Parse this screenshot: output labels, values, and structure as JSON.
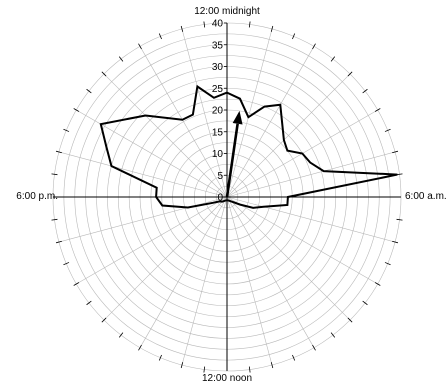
{
  "chart_data": {
    "type": "line",
    "subtype": "polar",
    "title": "",
    "direction_labels": {
      "top": "12:00 midnight",
      "right": "6:00 a.m.",
      "bottom": "12:00 noon",
      "left": "6:00 p.m."
    },
    "radial_axis": {
      "min": 0,
      "max": 40,
      "ticks": [
        0,
        5,
        10,
        15,
        20,
        25,
        30,
        35,
        40
      ],
      "tick_labels": [
        "0",
        "5",
        "10",
        "15",
        "20",
        "25",
        "30",
        "35",
        "40"
      ],
      "rings_every": 2.5
    },
    "angular_axis": {
      "unit": "hours",
      "period": 24,
      "zero_at": "top",
      "direction": "clockwise",
      "spokes_every_hours": 1,
      "outer_ticks_every_hours": 0.5
    },
    "grid": true,
    "series": [
      {
        "points": [
          {
            "hour": 0.0,
            "value": 24
          },
          {
            "hour": 0.5,
            "value": 22.8
          },
          {
            "hour": 1.0,
            "value": 19
          },
          {
            "hour": 1.5,
            "value": 22.5
          },
          {
            "hour": 2.0,
            "value": 24.5
          },
          {
            "hour": 3.0,
            "value": 18.5
          },
          {
            "hour": 3.5,
            "value": 17.5
          },
          {
            "hour": 4.0,
            "value": 20
          },
          {
            "hour": 4.5,
            "value": 20.7
          },
          {
            "hour": 5.0,
            "value": 23
          },
          {
            "hour": 5.5,
            "value": 39.5
          },
          {
            "hour": 6.0,
            "value": 14
          },
          {
            "hour": 6.5,
            "value": 14
          },
          {
            "hour": 7.0,
            "value": 8.7
          },
          {
            "hour": 7.5,
            "value": 6.5
          },
          {
            "hour": 8.0,
            "value": 3.5
          },
          {
            "hour": 9.0,
            "value": 1.5
          },
          {
            "hour": 11.0,
            "value": 0.8
          },
          {
            "hour": 13.0,
            "value": 0.8
          },
          {
            "hour": 15.0,
            "value": 1.5
          },
          {
            "hour": 16.0,
            "value": 2.0
          },
          {
            "hour": 16.5,
            "value": 3.5
          },
          {
            "hour": 17.0,
            "value": 9.3
          },
          {
            "hour": 17.5,
            "value": 15
          },
          {
            "hour": 18.0,
            "value": 16.3
          },
          {
            "hour": 18.5,
            "value": 16.3
          },
          {
            "hour": 19.0,
            "value": 27.5
          },
          {
            "hour": 19.5,
            "value": 30
          },
          {
            "hour": 20.0,
            "value": 33.5
          },
          {
            "hour": 21.0,
            "value": 26.5
          },
          {
            "hour": 22.0,
            "value": 20.5
          },
          {
            "hour": 22.5,
            "value": 20.5
          },
          {
            "hour": 23.0,
            "value": 26.3
          },
          {
            "hour": 23.5,
            "value": 23
          }
        ]
      }
    ],
    "mean_vector": {
      "hour": 0.55,
      "value": 20
    }
  }
}
